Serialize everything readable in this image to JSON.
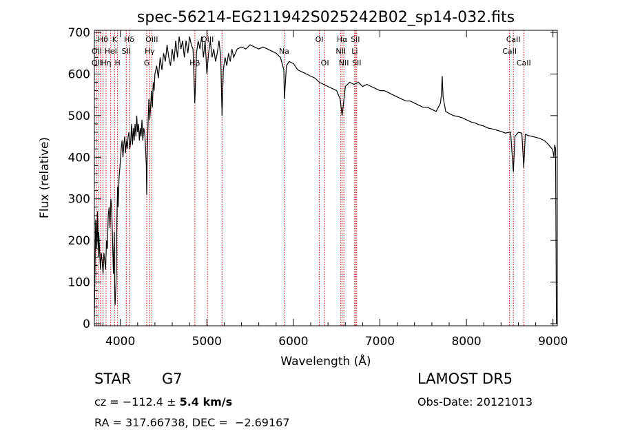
{
  "chart_data": {
    "type": "line",
    "title": "spec-56214-EG211942S025242B02_sp14-032.fits",
    "xlabel": "Wavelength (Å)",
    "ylabel": "Flux (relative)",
    "xlim": [
      3700,
      9050
    ],
    "ylim": [
      -5,
      705
    ],
    "xticks": [
      4000,
      5000,
      6000,
      7000,
      8000,
      9000
    ],
    "yticks": [
      0,
      100,
      200,
      300,
      400,
      500,
      600,
      700
    ],
    "grid": false,
    "line_color": "#000000",
    "marker_color": "#cc0000",
    "series": [
      {
        "x": [
          3700,
          3705,
          3710,
          3715,
          3720,
          3725,
          3730,
          3735,
          3740,
          3745,
          3750,
          3760,
          3770,
          3780,
          3790,
          3800,
          3810,
          3820,
          3830,
          3840,
          3850,
          3860,
          3870,
          3880,
          3890,
          3900,
          3910,
          3920,
          3930,
          3935,
          3940,
          3950,
          3960,
          3968,
          3975,
          3985,
          4000,
          4010,
          4020,
          4030,
          4040,
          4050,
          4060,
          4070,
          4080,
          4090,
          4100,
          4110,
          4120,
          4130,
          4140,
          4150,
          4160,
          4170,
          4180,
          4190,
          4200,
          4210,
          4220,
          4230,
          4240,
          4250,
          4260,
          4270,
          4280,
          4290,
          4300,
          4305,
          4310,
          4320,
          4330,
          4340,
          4350,
          4360,
          4370,
          4380,
          4390,
          4400,
          4420,
          4440,
          4460,
          4480,
          4500,
          4520,
          4540,
          4560,
          4580,
          4600,
          4620,
          4640,
          4660,
          4680,
          4700,
          4720,
          4740,
          4760,
          4780,
          4800,
          4820,
          4840,
          4861,
          4880,
          4900,
          4920,
          4940,
          4960,
          4980,
          5000,
          5020,
          5040,
          5060,
          5080,
          5100,
          5120,
          5140,
          5160,
          5175,
          5190,
          5210,
          5230,
          5250,
          5270,
          5290,
          5310,
          5330,
          5350,
          5400,
          5450,
          5500,
          5550,
          5600,
          5650,
          5700,
          5750,
          5800,
          5850,
          5889,
          5896,
          5920,
          5950,
          6000,
          6050,
          6100,
          6150,
          6200,
          6250,
          6300,
          6350,
          6400,
          6450,
          6500,
          6540,
          6563,
          6580,
          6600,
          6650,
          6700,
          6750,
          6800,
          6850,
          6900,
          6950,
          7000,
          7050,
          7100,
          7150,
          7200,
          7250,
          7300,
          7350,
          7400,
          7450,
          7500,
          7550,
          7600,
          7650,
          7700,
          7710,
          7720,
          7730,
          7760,
          7800,
          7850,
          7900,
          7950,
          8000,
          8050,
          8100,
          8150,
          8200,
          8250,
          8300,
          8350,
          8400,
          8450,
          8498,
          8510,
          8542,
          8560,
          8600,
          8640,
          8662,
          8680,
          8720,
          8760,
          8800,
          8850,
          8900,
          8950,
          8990,
          9000,
          9010,
          9020,
          9030,
          9040
        ],
        "y": [
          20,
          90,
          180,
          250,
          240,
          180,
          200,
          270,
          230,
          160,
          220,
          180,
          130,
          170,
          150,
          120,
          170,
          150,
          130,
          200,
          180,
          260,
          280,
          230,
          300,
          280,
          200,
          120,
          220,
          70,
          45,
          100,
          250,
          330,
          280,
          350,
          390,
          420,
          440,
          400,
          430,
          450,
          410,
          440,
          420,
          450,
          460,
          420,
          440,
          480,
          430,
          470,
          440,
          480,
          450,
          500,
          460,
          480,
          440,
          470,
          450,
          490,
          440,
          470,
          460,
          430,
          380,
          310,
          400,
          480,
          540,
          490,
          520,
          560,
          520,
          580,
          560,
          600,
          620,
          590,
          640,
          610,
          650,
          630,
          670,
          640,
          620,
          660,
          630,
          680,
          640,
          690,
          660,
          680,
          640,
          680,
          650,
          690,
          670,
          660,
          530,
          650,
          680,
          660,
          690,
          640,
          680,
          600,
          650,
          680,
          640,
          660,
          630,
          650,
          680,
          640,
          500,
          610,
          640,
          620,
          650,
          630,
          660,
          640,
          650,
          660,
          665,
          660,
          670,
          665,
          660,
          665,
          660,
          655,
          650,
          640,
          610,
          540,
          620,
          630,
          625,
          610,
          605,
          600,
          595,
          590,
          580,
          575,
          570,
          565,
          560,
          540,
          500,
          530,
          570,
          580,
          575,
          580,
          570,
          575,
          570,
          565,
          560,
          560,
          555,
          550,
          545,
          540,
          535,
          535,
          530,
          525,
          520,
          520,
          515,
          510,
          530,
          550,
          595,
          545,
          510,
          505,
          500,
          498,
          495,
          490,
          485,
          482,
          478,
          475,
          470,
          468,
          465,
          462,
          458,
          460,
          460,
          365,
          450,
          460,
          458,
          375,
          455,
          452,
          450,
          448,
          445,
          440,
          430,
          420,
          415,
          400,
          430,
          420,
          0
        ]
      }
    ],
    "line_markers": [
      {
        "label": "Hθ",
        "x": 3798,
        "row": 0
      },
      {
        "label": "K",
        "x": 3934,
        "row": 0
      },
      {
        "label": "Hδ",
        "x": 4102,
        "row": 0
      },
      {
        "label": "OIII",
        "x": 4363,
        "row": 0
      },
      {
        "label": "OIII",
        "x": 5007,
        "row": 0
      },
      {
        "label": "OI",
        "x": 6300,
        "row": 0
      },
      {
        "label": "Hα",
        "x": 6563,
        "row": 0
      },
      {
        "label": "SII",
        "x": 6716,
        "row": 0
      },
      {
        "label": "CaII",
        "x": 8542,
        "row": 0
      },
      {
        "label": "OII",
        "x": 3727,
        "row": 1
      },
      {
        "label": "HeI",
        "x": 3889,
        "row": 1
      },
      {
        "label": "SII",
        "x": 4069,
        "row": 1
      },
      {
        "label": "Hγ",
        "x": 4340,
        "row": 1
      },
      {
        "label": "Na",
        "x": 5893,
        "row": 1
      },
      {
        "label": "NII",
        "x": 6548,
        "row": 1
      },
      {
        "label": "Li",
        "x": 6708,
        "row": 1
      },
      {
        "label": "CaII",
        "x": 8498,
        "row": 1
      },
      {
        "label": "OII",
        "x": 3727,
        "row": 2
      },
      {
        "label": "Hη",
        "x": 3835,
        "row": 2
      },
      {
        "label": "H",
        "x": 3968,
        "row": 2
      },
      {
        "label": "G",
        "x": 4305,
        "row": 2
      },
      {
        "label": "Hβ",
        "x": 4861,
        "row": 2
      },
      {
        "label": "OI",
        "x": 6364,
        "row": 2
      },
      {
        "label": "NII",
        "x": 6583,
        "row": 2
      },
      {
        "label": "SII",
        "x": 6731,
        "row": 2
      },
      {
        "label": "CaII",
        "x": 8662,
        "row": 2
      }
    ],
    "extra_marker_lines": [
      3750,
      3771,
      3889,
      3934,
      4069,
      4102,
      4340,
      4363,
      4861,
      5007,
      5175,
      5893,
      6300,
      6364,
      6548,
      6563,
      6583,
      6708,
      6716,
      6731,
      8498,
      8542,
      8662
    ]
  },
  "footer": {
    "object_class": "STAR",
    "subclass": "G7",
    "survey": "LAMOST DR5",
    "redshift_prefix": "cz = −112.4 ± ",
    "redshift_error": "5.4 km/s",
    "obs_date": "Obs-Date: 20121013",
    "coords": "RA = 317.66738, DEC =  −2.69167"
  }
}
